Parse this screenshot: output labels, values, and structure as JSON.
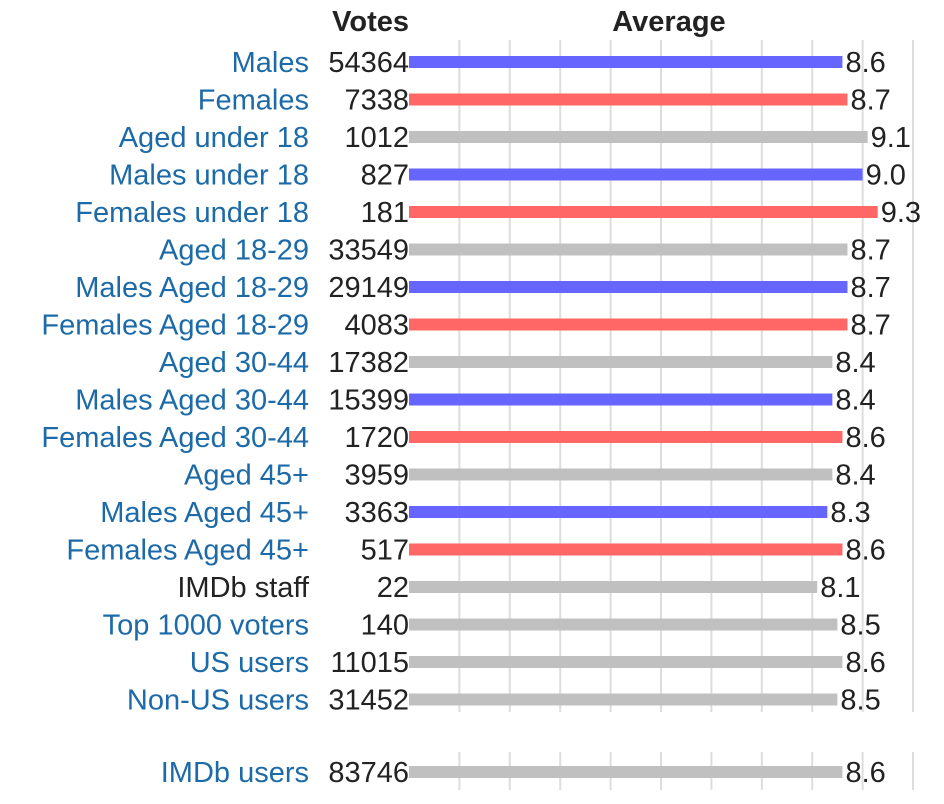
{
  "chart_data": {
    "type": "bar",
    "headers": {
      "votes": "Votes",
      "average": "Average"
    },
    "xlim": [
      0,
      10
    ],
    "grid": true,
    "colors": {
      "male": "#6666ff",
      "female": "#ff6666",
      "all": "#c0c0c0"
    },
    "rows": [
      {
        "label": "Males",
        "votes": "54364",
        "average": "8.6",
        "value": 8.6,
        "group": "male",
        "link": true
      },
      {
        "label": "Females",
        "votes": "7338",
        "average": "8.7",
        "value": 8.7,
        "group": "female",
        "link": true
      },
      {
        "label": "Aged under 18",
        "votes": "1012",
        "average": "9.1",
        "value": 9.1,
        "group": "all",
        "link": true
      },
      {
        "label": "Males under 18",
        "votes": "827",
        "average": "9.0",
        "value": 9.0,
        "group": "male",
        "link": true
      },
      {
        "label": "Females under 18",
        "votes": "181",
        "average": "9.3",
        "value": 9.3,
        "group": "female",
        "link": true
      },
      {
        "label": "Aged 18-29",
        "votes": "33549",
        "average": "8.7",
        "value": 8.7,
        "group": "all",
        "link": true
      },
      {
        "label": "Males Aged 18-29",
        "votes": "29149",
        "average": "8.7",
        "value": 8.7,
        "group": "male",
        "link": true
      },
      {
        "label": "Females Aged 18-29",
        "votes": "4083",
        "average": "8.7",
        "value": 8.7,
        "group": "female",
        "link": true
      },
      {
        "label": "Aged 30-44",
        "votes": "17382",
        "average": "8.4",
        "value": 8.4,
        "group": "all",
        "link": true
      },
      {
        "label": "Males Aged 30-44",
        "votes": "15399",
        "average": "8.4",
        "value": 8.4,
        "group": "male",
        "link": true
      },
      {
        "label": "Females Aged 30-44",
        "votes": "1720",
        "average": "8.6",
        "value": 8.6,
        "group": "female",
        "link": true
      },
      {
        "label": "Aged 45+",
        "votes": "3959",
        "average": "8.4",
        "value": 8.4,
        "group": "all",
        "link": true
      },
      {
        "label": "Males Aged 45+",
        "votes": "3363",
        "average": "8.3",
        "value": 8.3,
        "group": "male",
        "link": true
      },
      {
        "label": "Females Aged 45+",
        "votes": "517",
        "average": "8.6",
        "value": 8.6,
        "group": "female",
        "link": true
      },
      {
        "label": "IMDb staff",
        "votes": "22",
        "average": "8.1",
        "value": 8.1,
        "group": "all",
        "link": false
      },
      {
        "label": "Top 1000 voters",
        "votes": "140",
        "average": "8.5",
        "value": 8.5,
        "group": "all",
        "link": true
      },
      {
        "label": "US users",
        "votes": "11015",
        "average": "8.6",
        "value": 8.6,
        "group": "all",
        "link": true
      },
      {
        "label": "Non-US users",
        "votes": "31452",
        "average": "8.5",
        "value": 8.5,
        "group": "all",
        "link": true
      }
    ],
    "summary": {
      "label": "IMDb users",
      "votes": "83746",
      "average": "8.6",
      "value": 8.6,
      "group": "all",
      "link": true
    }
  }
}
